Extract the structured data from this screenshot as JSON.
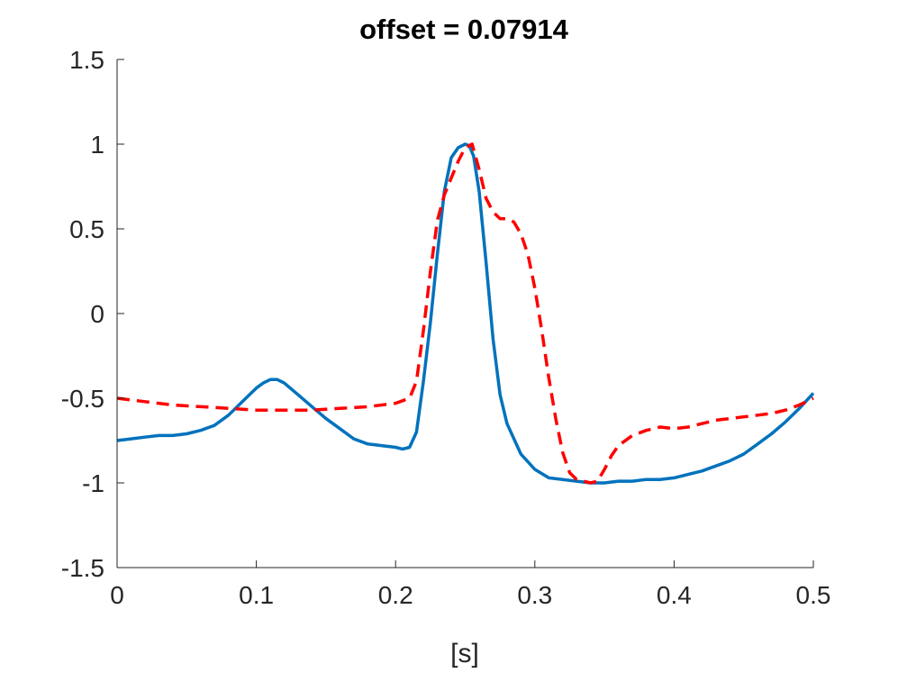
{
  "chart_data": {
    "type": "line",
    "title": "offset = 0.07914",
    "xlabel": "[s]",
    "ylabel": "",
    "xlim": [
      0,
      0.5
    ],
    "ylim": [
      -1.5,
      1.5
    ],
    "xticks": [
      0,
      0.1,
      0.2,
      0.3,
      0.4,
      0.5
    ],
    "xtick_labels": [
      "0",
      "0.1",
      "0.2",
      "0.3",
      "0.4",
      "0.5"
    ],
    "yticks": [
      -1.5,
      -1,
      -0.5,
      0,
      0.5,
      1,
      1.5
    ],
    "ytick_labels": [
      "-1.5",
      "-1",
      "-0.5",
      "0",
      "0.5",
      "1",
      "1.5"
    ],
    "grid": false,
    "legend": "none",
    "series": [
      {
        "color": "#0072BD",
        "style": "solid",
        "x": [
          0,
          0.01,
          0.02,
          0.03,
          0.04,
          0.05,
          0.06,
          0.07,
          0.08,
          0.09,
          0.1,
          0.105,
          0.11,
          0.115,
          0.12,
          0.13,
          0.14,
          0.15,
          0.16,
          0.17,
          0.18,
          0.19,
          0.2,
          0.205,
          0.21,
          0.215,
          0.22,
          0.225,
          0.23,
          0.235,
          0.24,
          0.245,
          0.25,
          0.253,
          0.256,
          0.26,
          0.265,
          0.27,
          0.275,
          0.28,
          0.29,
          0.3,
          0.31,
          0.32,
          0.33,
          0.34,
          0.35,
          0.36,
          0.37,
          0.38,
          0.39,
          0.4,
          0.41,
          0.42,
          0.43,
          0.44,
          0.45,
          0.46,
          0.47,
          0.48,
          0.49,
          0.5
        ],
        "y": [
          -0.75,
          -0.74,
          -0.73,
          -0.72,
          -0.72,
          -0.71,
          -0.69,
          -0.66,
          -0.6,
          -0.52,
          -0.44,
          -0.41,
          -0.39,
          -0.39,
          -0.41,
          -0.48,
          -0.55,
          -0.62,
          -0.68,
          -0.74,
          -0.77,
          -0.78,
          -0.79,
          -0.8,
          -0.79,
          -0.7,
          -0.4,
          -0.05,
          0.35,
          0.72,
          0.92,
          0.98,
          1.0,
          0.99,
          0.93,
          0.72,
          0.3,
          -0.15,
          -0.48,
          -0.65,
          -0.83,
          -0.92,
          -0.97,
          -0.98,
          -0.99,
          -1.0,
          -1.0,
          -0.99,
          -0.99,
          -0.98,
          -0.98,
          -0.97,
          -0.95,
          -0.93,
          -0.9,
          -0.87,
          -0.83,
          -0.77,
          -0.71,
          -0.64,
          -0.56,
          -0.47
        ]
      },
      {
        "color": "#FF0000",
        "style": "dashed",
        "x": [
          0,
          0.02,
          0.04,
          0.06,
          0.08,
          0.1,
          0.12,
          0.14,
          0.16,
          0.18,
          0.2,
          0.21,
          0.215,
          0.22,
          0.225,
          0.23,
          0.235,
          0.24,
          0.245,
          0.25,
          0.255,
          0.26,
          0.265,
          0.27,
          0.275,
          0.28,
          0.285,
          0.29,
          0.295,
          0.3,
          0.305,
          0.31,
          0.315,
          0.32,
          0.325,
          0.33,
          0.335,
          0.34,
          0.345,
          0.35,
          0.355,
          0.36,
          0.37,
          0.38,
          0.39,
          0.4,
          0.41,
          0.42,
          0.43,
          0.44,
          0.45,
          0.46,
          0.47,
          0.48,
          0.49,
          0.5
        ],
        "y": [
          -0.5,
          -0.52,
          -0.54,
          -0.55,
          -0.56,
          -0.57,
          -0.57,
          -0.57,
          -0.56,
          -0.55,
          -0.53,
          -0.5,
          -0.4,
          -0.1,
          0.25,
          0.55,
          0.7,
          0.8,
          0.9,
          0.98,
          1.0,
          0.85,
          0.68,
          0.6,
          0.56,
          0.56,
          0.54,
          0.47,
          0.35,
          0.15,
          -0.1,
          -0.38,
          -0.62,
          -0.82,
          -0.94,
          -0.98,
          -0.99,
          -1.0,
          -0.99,
          -0.92,
          -0.84,
          -0.78,
          -0.72,
          -0.69,
          -0.67,
          -0.68,
          -0.67,
          -0.65,
          -0.63,
          -0.62,
          -0.61,
          -0.6,
          -0.59,
          -0.57,
          -0.54,
          -0.5
        ]
      }
    ]
  }
}
